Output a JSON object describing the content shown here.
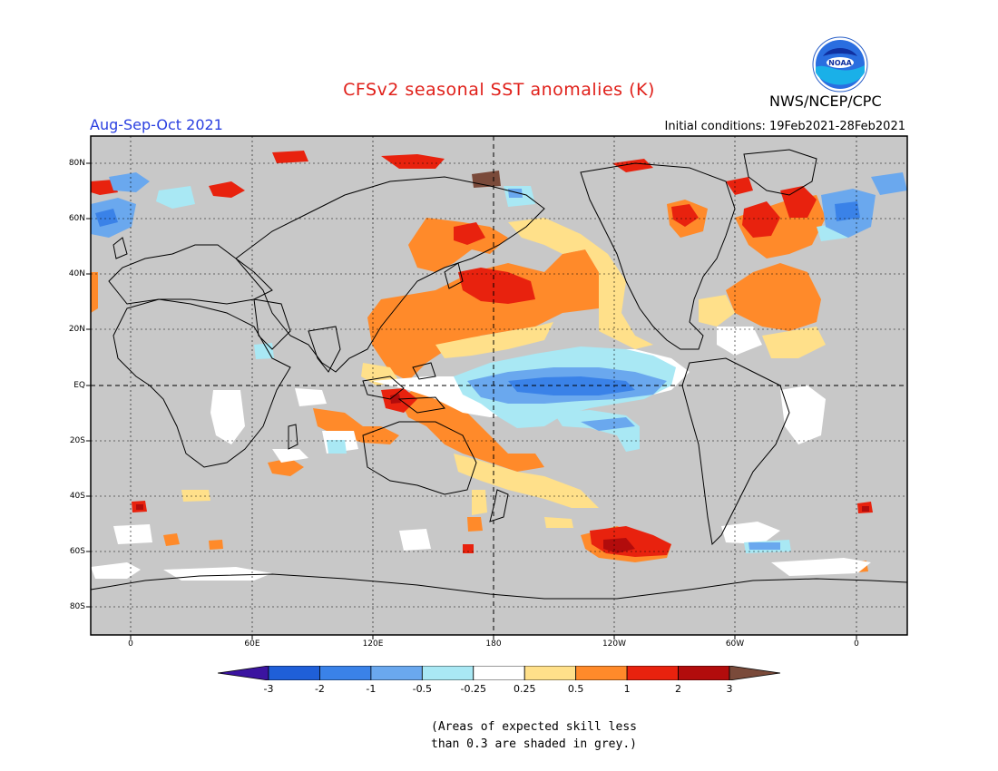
{
  "title": "CFSv2 seasonal SST anomalies (K)",
  "season": "Aug-Sep-Oct 2021",
  "initial_conditions": "Initial conditions: 19Feb2021-28Feb2021",
  "agency": "NWS/NCEP/CPC",
  "logo_text": "NOAA",
  "lat_labels": [
    "80N",
    "60N",
    "40N",
    "20N",
    "EQ",
    "20S",
    "40S",
    "60S",
    "80S"
  ],
  "lon_labels": [
    "0",
    "60E",
    "120E",
    "180",
    "120W",
    "60W",
    "0"
  ],
  "colorbar": {
    "labels": [
      "-3",
      "-2",
      "-1",
      "-0.5",
      "-0.25",
      "0.25",
      "0.5",
      "1",
      "2",
      "3"
    ],
    "colors": [
      "#3b14a0",
      "#1f5fd8",
      "#3a82e8",
      "#6aa8ee",
      "#a9e8f4",
      "#ffffff",
      "#ffe08a",
      "#ff8a2a",
      "#e8220e",
      "#b20c0c",
      "#7a4a3a"
    ]
  },
  "note_line1": "(Areas of expected skill less",
  "note_line2": "than 0.3 are shaded in grey.)",
  "colors": {
    "no_skill_grey": "#c8c8c8",
    "title_red": "#e0201a",
    "season_blue": "#2a3fe0"
  }
}
